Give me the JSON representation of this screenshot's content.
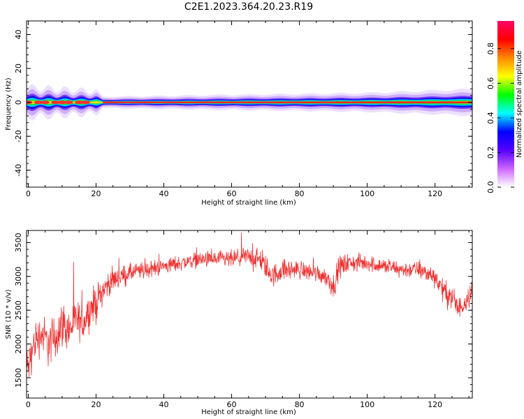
{
  "title": "C2E1.2023.364.20.23.R19",
  "colors": {
    "snr_line": "#ee3030",
    "axes": "#000000",
    "background": "#ffffff"
  },
  "chart_data": [
    {
      "type": "heatmap",
      "xlabel": "Height of straight line (km)",
      "ylabel": "Frequency (Hz)",
      "xlim": [
        -0.5,
        131
      ],
      "ylim": [
        -50,
        48
      ],
      "xticks": [
        0,
        20,
        40,
        60,
        80,
        100,
        120
      ],
      "yticks": [
        -40,
        -20,
        0,
        20,
        40
      ],
      "band_center_hz": 0,
      "band_halfwidth_hz": [
        {
          "x": 0,
          "v": 4
        },
        {
          "x": 20,
          "v": 3
        },
        {
          "x": 22,
          "v": 1.5
        },
        {
          "x": 60,
          "v": 2
        },
        {
          "x": 100,
          "v": 2.5
        },
        {
          "x": 131,
          "v": 3.5
        }
      ],
      "colorbar": {
        "label": "Normalized spectral amplitude",
        "range": [
          0,
          0.96
        ],
        "ticks": [
          "0.0",
          "0.2",
          "0.4",
          "0.6",
          "0.8"
        ],
        "tick_values": [
          0,
          0.2,
          0.4,
          0.6,
          0.8
        ],
        "colors": [
          "#ffffff",
          "#cc66ff",
          "#5500ff",
          "#0000ff",
          "#00ffff",
          "#00ff00",
          "#ffff00",
          "#ff8800",
          "#ff0000",
          "#ff0066"
        ]
      },
      "grid": false
    },
    {
      "type": "line",
      "xlabel": "Height of straight line (km)",
      "ylabel": "SNR (10 * v/v)",
      "xlim": [
        -0.5,
        131
      ],
      "ylim": [
        1200,
        3680
      ],
      "xticks": [
        0,
        20,
        40,
        60,
        80,
        100,
        120
      ],
      "yticks": [
        1500,
        2000,
        2500,
        3000,
        3500
      ],
      "grid": false,
      "series": [
        {
          "x": [
            0,
            2,
            4,
            6,
            8,
            10,
            12,
            14,
            16,
            18,
            20,
            22,
            25,
            30,
            35,
            40,
            45,
            50,
            55,
            60,
            65,
            68,
            70,
            72,
            75,
            80,
            85,
            88,
            90,
            92,
            95,
            100,
            105,
            110,
            115,
            120,
            123,
            125,
            127,
            129,
            131
          ],
          "y": [
            1650,
            2050,
            2150,
            2000,
            2100,
            2300,
            2200,
            2350,
            2300,
            2500,
            2600,
            2800,
            2950,
            3050,
            3100,
            3150,
            3200,
            3250,
            3250,
            3250,
            3300,
            3250,
            3150,
            3000,
            3100,
            3100,
            3050,
            3000,
            2850,
            3150,
            3200,
            3200,
            3150,
            3100,
            3100,
            3000,
            2750,
            2700,
            2500,
            2650,
            2800
          ],
          "noise_amplitude": [
            450,
            450,
            450,
            500,
            500,
            500,
            450,
            450,
            400,
            400,
            400,
            300,
            250,
            200,
            180,
            170,
            170,
            170,
            180,
            200,
            200,
            250,
            250,
            250,
            230,
            200,
            200,
            200,
            250,
            250,
            200,
            180,
            180,
            180,
            180,
            220,
            250,
            280,
            280,
            250,
            250
          ]
        }
      ]
    }
  ]
}
